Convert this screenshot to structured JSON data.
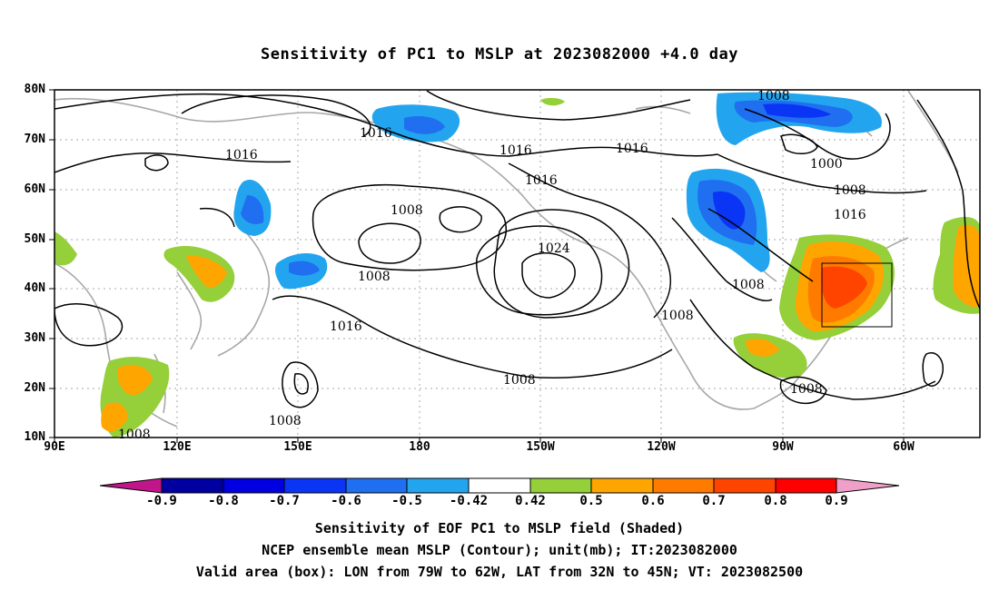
{
  "title": "Sensitivity of PC1 to MSLP at 2023082000 +4.0 day",
  "lat_labels": [
    "80N",
    "70N",
    "60N",
    "50N",
    "40N",
    "30N",
    "20N",
    "10N"
  ],
  "lon_labels": [
    "90E",
    "120E",
    "150E",
    "180",
    "150W",
    "120W",
    "90W",
    "60W"
  ],
  "contour_labels": [
    "1008",
    "1016",
    "1016",
    "1016",
    "1016",
    "1000",
    "1008",
    "1016",
    "1008",
    "1008",
    "1024",
    "1008",
    "1016",
    "1008",
    "1016",
    "1008",
    "1008",
    "1008"
  ],
  "colorbar": {
    "ticks": [
      "-0.9",
      "-0.8",
      "-0.7",
      "-0.6",
      "-0.5",
      "-0.42",
      "0.42",
      "0.5",
      "0.6",
      "0.7",
      "0.8",
      "0.9"
    ],
    "colors": [
      "#0000a0",
      "#0000e0",
      "#0a35f5",
      "#1f6ff0",
      "#22a5ee",
      "#00cdf5",
      "#ffffff",
      "#95cf3a",
      "#ffa500",
      "#ff7b00",
      "#ff4400",
      "#ff0000"
    ],
    "low_color": "#c0168a",
    "high_color": "#f0a0c8"
  },
  "captions": {
    "line1": "Sensitivity of EOF PC1 to MSLP field (Shaded)",
    "line2": "NCEP ensemble mean MSLP (Contour); unit(mb); IT:2023082000",
    "line3": "Valid area (box): LON from 79W to 62W, LAT from 32N to 45N; VT: 2023082500"
  }
}
